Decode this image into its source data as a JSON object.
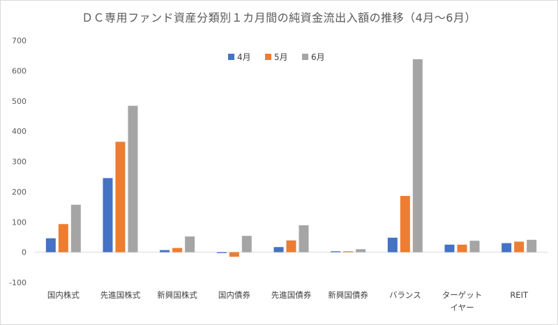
{
  "chart_data": {
    "type": "bar",
    "title": "ＤＣ専用ファンド資産分類別１カ月間の純資金流出入額の推移（4月～6月）",
    "categories": [
      "国内株式",
      "先進国株式",
      "新興国株式",
      "国内債券",
      "先進国債券",
      "新興国債券",
      "バランス",
      "ターゲット\nイヤー",
      "REIT"
    ],
    "category_lines": [
      [
        "国内株式"
      ],
      [
        "先進国株式"
      ],
      [
        "新興国株式"
      ],
      [
        "国内債券"
      ],
      [
        "先進国債券"
      ],
      [
        "新興国債券"
      ],
      [
        "バランス"
      ],
      [
        "ターゲット",
        "イヤー"
      ],
      [
        "REIT"
      ]
    ],
    "series": [
      {
        "name": "4月",
        "color": "#4472c4",
        "values": [
          46,
          245,
          7,
          -3,
          17,
          3,
          48,
          25,
          30
        ]
      },
      {
        "name": "5月",
        "color": "#ed7d31",
        "values": [
          93,
          365,
          14,
          -15,
          39,
          3,
          186,
          25,
          35
        ]
      },
      {
        "name": "6月",
        "color": "#a5a5a5",
        "values": [
          157,
          484,
          52,
          54,
          89,
          10,
          638,
          38,
          41
        ]
      }
    ],
    "ylim": [
      -100,
      700
    ],
    "yticks": [
      -100,
      0,
      100,
      200,
      300,
      400,
      500,
      600,
      700
    ],
    "xlabel": "",
    "ylabel": "",
    "grid": false,
    "legend": "top-center"
  }
}
